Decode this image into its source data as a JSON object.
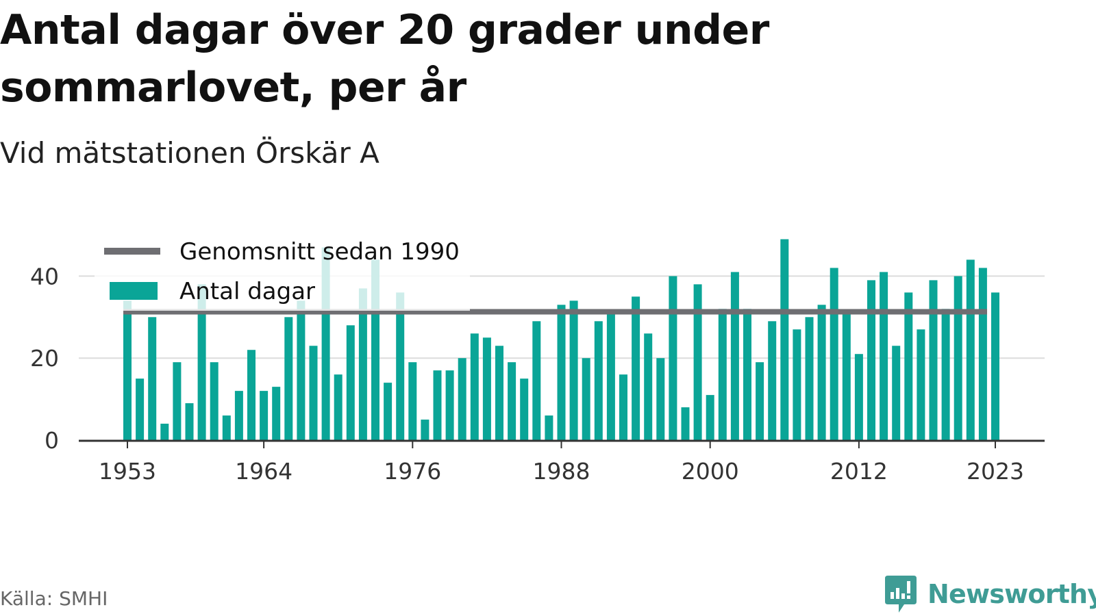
{
  "title": "Antal dagar över 20 grader under sommarlovet, per år",
  "subtitle": "Vid mätstationen Örskär A",
  "source": "Källa: SMHI",
  "brand": {
    "name": "Newsworthy",
    "icon": "newsworthy-logo-icon"
  },
  "colors": {
    "bars": "#0aa597",
    "average": "#6e6e72",
    "grid": "#dcdcdc",
    "axis": "#333333",
    "brand": "#3f9c95"
  },
  "chart_data": {
    "type": "bar",
    "xlabel": "",
    "ylabel": "",
    "ylim": [
      0,
      49
    ],
    "grid": true,
    "legend_position": "top-left",
    "x_ticks": [
      "1953",
      "1964",
      "1976",
      "1988",
      "2000",
      "2012",
      "2023"
    ],
    "y_ticks": [
      "0",
      "20",
      "40"
    ],
    "categories": [
      1953,
      1954,
      1955,
      1956,
      1957,
      1958,
      1959,
      1960,
      1961,
      1962,
      1963,
      1964,
      1965,
      1966,
      1967,
      1968,
      1969,
      1970,
      1971,
      1972,
      1973,
      1974,
      1975,
      1976,
      1977,
      1978,
      1979,
      1980,
      1981,
      1982,
      1983,
      1984,
      1985,
      1986,
      1987,
      1988,
      1989,
      1990,
      1991,
      1992,
      1993,
      1994,
      1995,
      1996,
      1997,
      1998,
      1999,
      2000,
      2001,
      2002,
      2003,
      2004,
      2005,
      2006,
      2007,
      2008,
      2009,
      2010,
      2011,
      2012,
      2013,
      2014,
      2015,
      2016,
      2017,
      2018,
      2019,
      2020,
      2021,
      2022,
      2023
    ],
    "series": [
      {
        "name": "Antal dagar",
        "type": "bar",
        "values": [
          34,
          15,
          30,
          4,
          19,
          9,
          38,
          19,
          6,
          12,
          22,
          12,
          13,
          30,
          34,
          23,
          47,
          16,
          28,
          37,
          44,
          14,
          36,
          19,
          5,
          17,
          17,
          20,
          26,
          25,
          23,
          19,
          15,
          29,
          6,
          33,
          34,
          20,
          29,
          31,
          16,
          35,
          26,
          20,
          40,
          8,
          38,
          11,
          32,
          41,
          32,
          19,
          29,
          49,
          27,
          30,
          33,
          42,
          31,
          21,
          39,
          41,
          23,
          36,
          27,
          39,
          32,
          40,
          44,
          42,
          36
        ]
      },
      {
        "name": "Genomsnitt sedan 1990",
        "type": "line",
        "value": 31.3
      }
    ]
  }
}
